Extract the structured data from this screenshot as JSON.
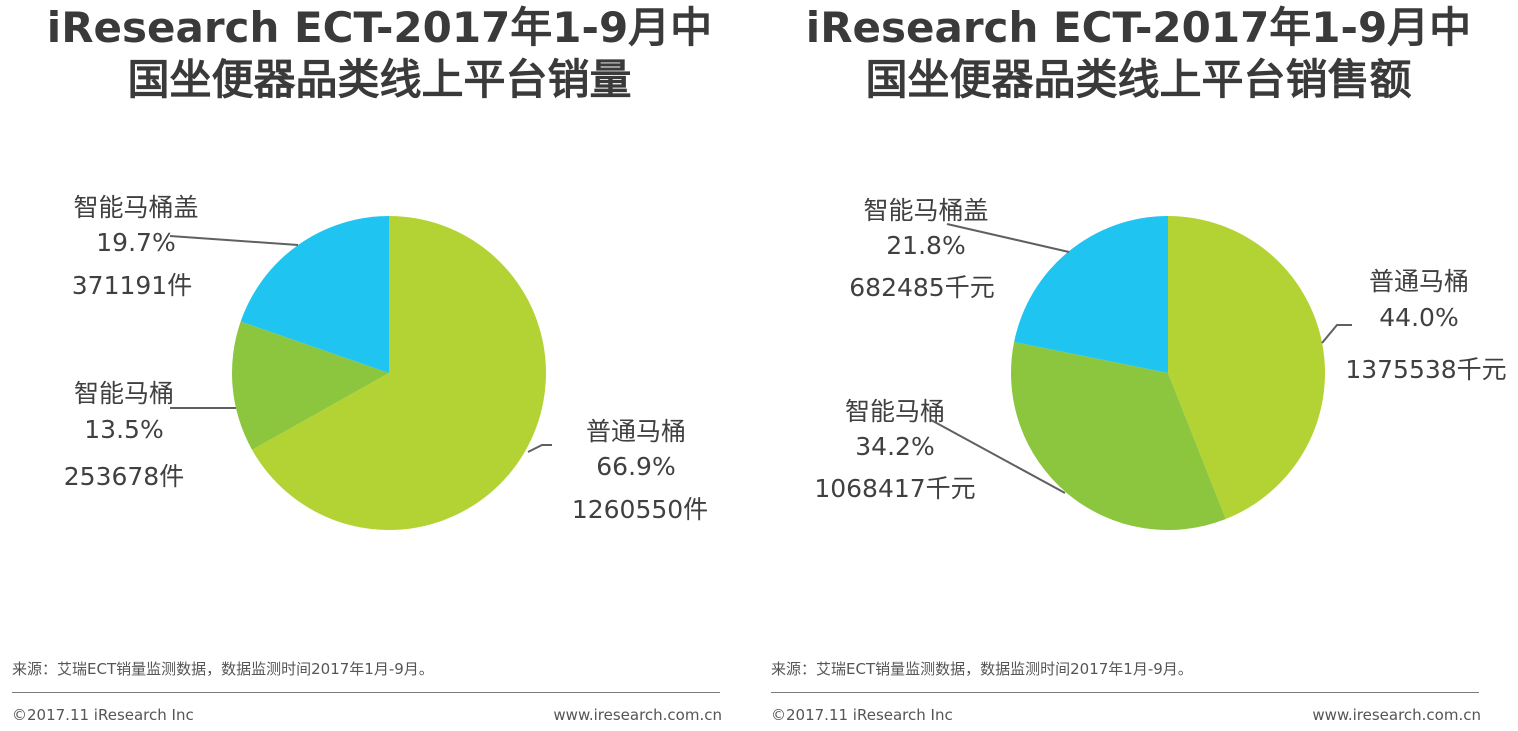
{
  "chart_data": [
    {
      "type": "pie",
      "title": "iResearch ECT-2017年1-9月中国坐便器品类线上平台销量",
      "title_lines": [
        "iResearch ECT-2017年1-9月中",
        "国坐便器品类线上平台销量"
      ],
      "slices": [
        {
          "name": "普通马桶",
          "percent_label": "66.9%",
          "percent": 66.9,
          "value_label": "1260550件",
          "value": 1260550,
          "color": "#b3d334"
        },
        {
          "name": "智能马桶",
          "percent_label": "13.5%",
          "percent": 13.5,
          "value_label": "253678件",
          "value": 253678,
          "color": "#8cc63f"
        },
        {
          "name": "智能马桶盖",
          "percent_label": "19.7%",
          "percent": 19.7,
          "value_label": "371191件",
          "value": 371191,
          "color": "#20c4f0"
        }
      ],
      "source": "来源：艾瑞ECT销量监测数据，数据监测时间2017年1月-9月。",
      "copyright": "©2017.11 iResearch Inc",
      "website": "www.iresearch.com.cn"
    },
    {
      "type": "pie",
      "title": "iResearch ECT-2017年1-9月中国坐便器品类线上平台销售额",
      "title_lines": [
        "iResearch ECT-2017年1-9月中",
        "国坐便器品类线上平台销售额"
      ],
      "slices": [
        {
          "name": "普通马桶",
          "percent_label": "44.0%",
          "percent": 44.0,
          "value_label": "1375538千元",
          "value": 1375538,
          "color": "#b3d334"
        },
        {
          "name": "智能马桶",
          "percent_label": "34.2%",
          "percent": 34.2,
          "value_label": "1068417千元",
          "value": 1068417,
          "color": "#8cc63f"
        },
        {
          "name": "智能马桶盖",
          "percent_label": "21.8%",
          "percent": 21.8,
          "value_label": "682485千元",
          "value": 682485,
          "color": "#20c4f0"
        }
      ],
      "source": "来源：艾瑞ECT销量监测数据，数据监测时间2017年1月-9月。",
      "copyright": "©2017.11 iResearch Inc",
      "website": "www.iresearch.com.cn"
    }
  ]
}
